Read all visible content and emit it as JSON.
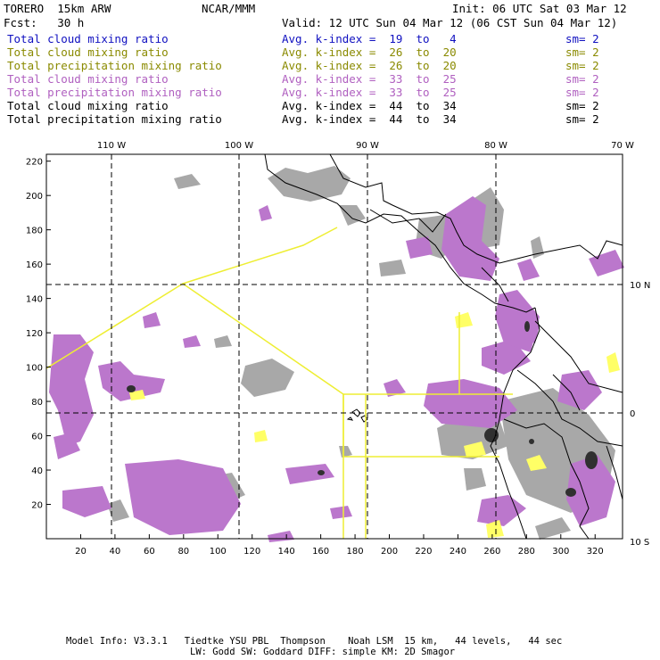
{
  "header": {
    "model": "TORERO  15km ARW",
    "org": "NCAR/MMM",
    "init": "Init: 06 UTC Sat 03 Mar 12",
    "fcst": "Fcst:   30 h",
    "valid": "Valid: 12 UTC Sun 04 Mar 12 (06 CST Sun 04 Mar 12)"
  },
  "legend": [
    {
      "field": "Total cloud mixing ratio",
      "kindex": "Avg. k-index =  19  to   4",
      "sm": "sm= 2",
      "color": "#1010c0"
    },
    {
      "field": "Total cloud mixing ratio",
      "kindex": "Avg. k-index =  26  to  20",
      "sm": "sm= 2",
      "color": "#8a8a00"
    },
    {
      "field": "Total precipitation mixing ratio",
      "kindex": "Avg. k-index =  26  to  20",
      "sm": "sm= 2",
      "color": "#8a8a00"
    },
    {
      "field": "Total cloud mixing ratio",
      "kindex": "Avg. k-index =  33  to  25",
      "sm": "sm= 2",
      "color": "#b060c0"
    },
    {
      "field": "Total precipitation mixing ratio",
      "kindex": "Avg. k-index =  33  to  25",
      "sm": "sm= 2",
      "color": "#b060c0"
    },
    {
      "field": "Total cloud mixing ratio",
      "kindex": "Avg. k-index =  44  to  34",
      "sm": "sm= 2",
      "color": "#000000"
    },
    {
      "field": "Total precipitation mixing ratio",
      "kindex": "Avg. k-index =  44  to  34",
      "sm": "sm= 2",
      "color": "#000000"
    }
  ],
  "axes": {
    "x_ticks": [
      "20",
      "40",
      "60",
      "80",
      "100",
      "120",
      "140",
      "160",
      "180",
      "200",
      "220",
      "240",
      "260",
      "280",
      "300",
      "320"
    ],
    "y_ticks": [
      "20",
      "40",
      "60",
      "80",
      "100",
      "120",
      "140",
      "160",
      "180",
      "200",
      "220"
    ],
    "lon_labels": [
      "110 W",
      "100 W",
      "90 W",
      "80 W",
      "70 W"
    ],
    "lat_labels": [
      "10 N",
      "0",
      "10 S"
    ]
  },
  "footer": {
    "line1": "Model Info: V3.3.1   Tiedtke YSU PBL  Thompson    Noah LSM  15 km,   44 levels,   44 sec",
    "line2": "LW: Godd SW: Goddard DIFF: simple KM: 2D Smagor"
  },
  "colors": {
    "purple": "#bb77cc",
    "gray": "#a8a8a8",
    "dark": "#303030",
    "yellow": "#ffff66",
    "line_yellow": "#eeee33"
  }
}
